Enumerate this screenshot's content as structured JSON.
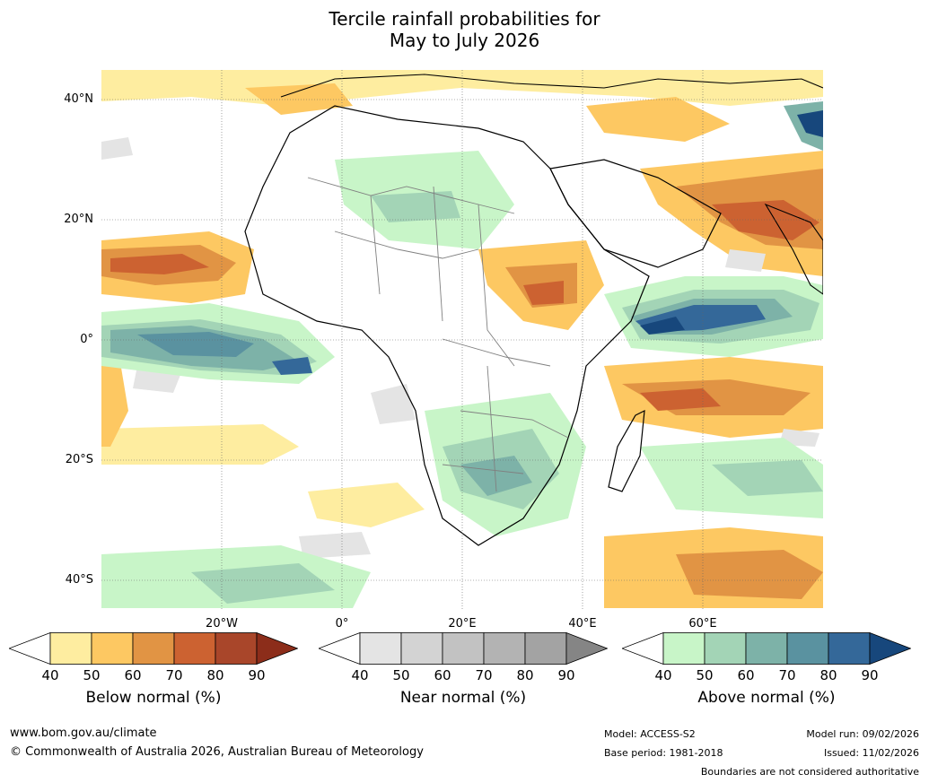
{
  "title_line1": "Tercile rainfall probabilities for",
  "title_line2": "May to July 2026",
  "map": {
    "lat_labels": [
      "40°N",
      "20°N",
      "0°",
      "20°S",
      "40°S"
    ],
    "lon_labels": [
      "20°W",
      "0°",
      "20°E",
      "40°E",
      "60°E"
    ]
  },
  "colorbars": [
    {
      "label": "Below normal (%)",
      "ticks": [
        "40",
        "50",
        "60",
        "70",
        "80",
        "90"
      ],
      "colors": [
        "#ffffff",
        "#feeda0",
        "#fdc862",
        "#e19444",
        "#cc6231",
        "#a9462a",
        "#8c2d1a"
      ]
    },
    {
      "label": "Near normal (%)",
      "ticks": [
        "40",
        "50",
        "60",
        "70",
        "80",
        "90"
      ],
      "colors": [
        "#ffffff",
        "#e4e4e4",
        "#d3d3d3",
        "#c2c2c2",
        "#b3b3b3",
        "#a3a3a3",
        "#858585"
      ]
    },
    {
      "label": "Above normal (%)",
      "ticks": [
        "40",
        "50",
        "60",
        "70",
        "80",
        "90"
      ],
      "colors": [
        "#ffffff",
        "#c8f5c8",
        "#a3d4b6",
        "#7db2a8",
        "#5a92a0",
        "#346899",
        "#17477c"
      ]
    }
  ],
  "footer": {
    "website": "www.bom.gov.au/climate",
    "copyright": "© Commonwealth of Australia 2026, Australian Bureau of Meteorology",
    "model": "Model: ACCESS-S2",
    "base_period": "Base period: 1981-2018",
    "model_run": "Model run: 09/02/2026",
    "issued": "Issued: 11/02/2026",
    "disclaimer": "Boundaries are not considered authoritative"
  }
}
